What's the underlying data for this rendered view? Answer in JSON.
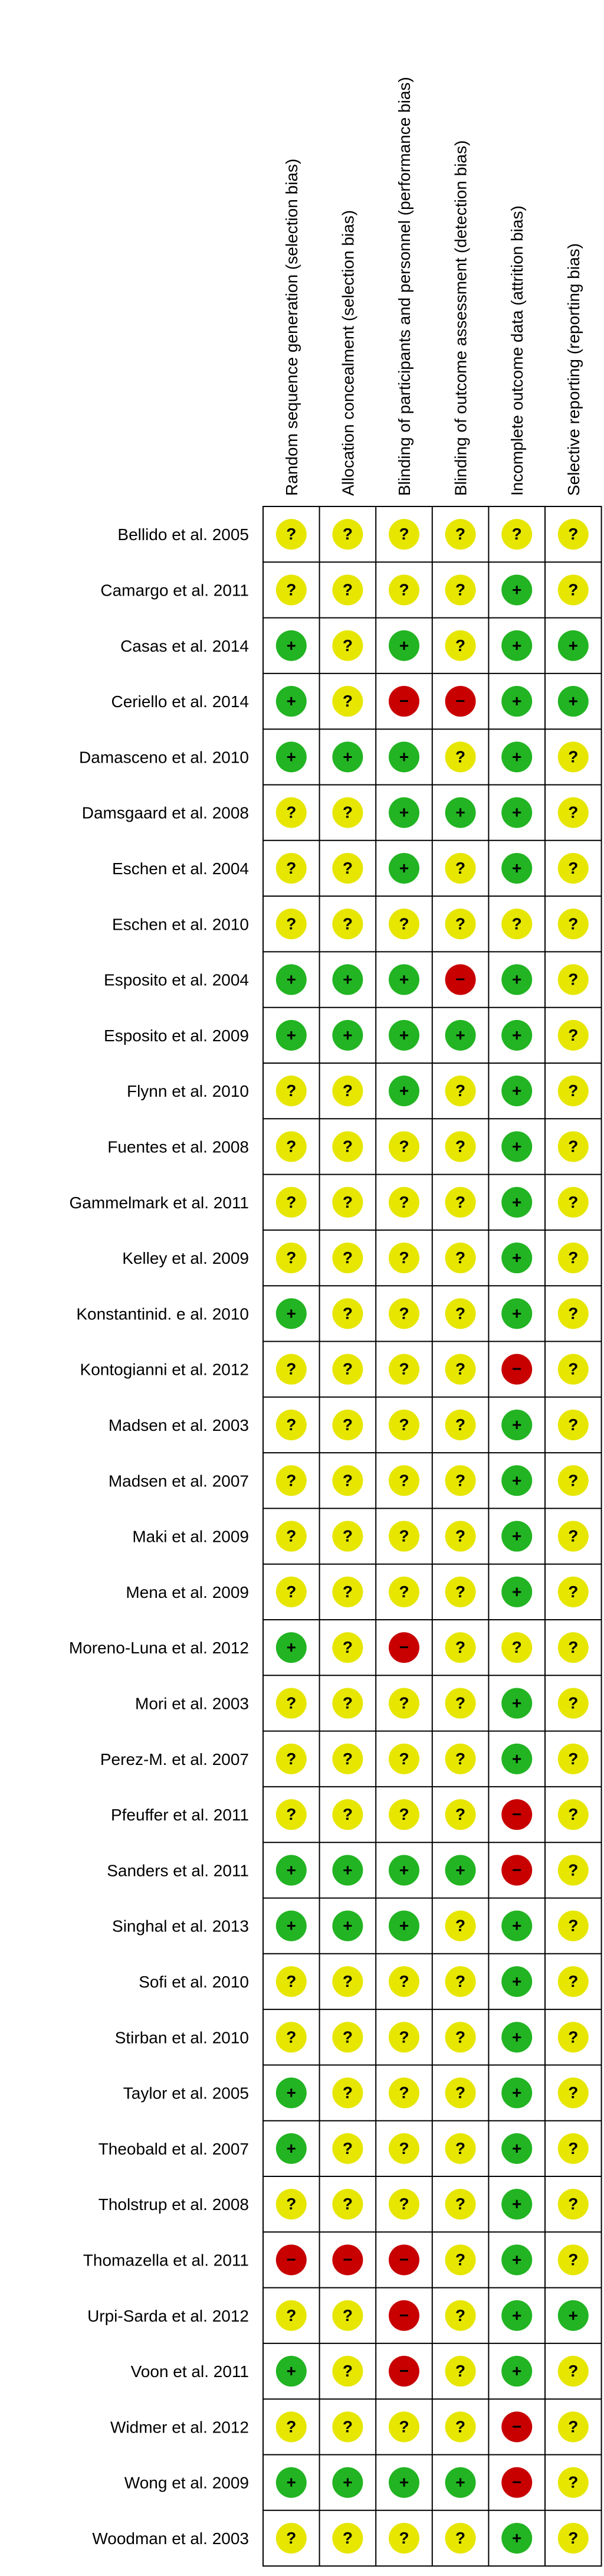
{
  "domains": [
    "Random sequence generation (selection bias)",
    "Allocation concealment (selection bias)",
    "Blinding of participants and personnel (performance bias)",
    "Blinding of outcome assessment (detection bias)",
    "Incomplete outcome data (attrition bias)",
    "Selective reporting (reporting bias)"
  ],
  "judgement_symbols": {
    "low": "+",
    "unclear": "?",
    "high": "−"
  },
  "judgement_colors": {
    "low": "#22b422",
    "unclear": "#e6e600",
    "high": "#c80000"
  },
  "studies": [
    {
      "name": "Bellido et al. 2005",
      "ratings": [
        "unclear",
        "unclear",
        "unclear",
        "unclear",
        "unclear",
        "unclear"
      ]
    },
    {
      "name": "Camargo et al. 2011",
      "ratings": [
        "unclear",
        "unclear",
        "unclear",
        "unclear",
        "low",
        "unclear"
      ]
    },
    {
      "name": "Casas et al. 2014",
      "ratings": [
        "low",
        "unclear",
        "low",
        "unclear",
        "low",
        "low"
      ]
    },
    {
      "name": "Ceriello et al. 2014",
      "ratings": [
        "low",
        "unclear",
        "high",
        "high",
        "low",
        "low"
      ]
    },
    {
      "name": "Damasceno et al. 2010",
      "ratings": [
        "low",
        "low",
        "low",
        "unclear",
        "low",
        "unclear"
      ]
    },
    {
      "name": "Damsgaard et al. 2008",
      "ratings": [
        "unclear",
        "unclear",
        "low",
        "low",
        "low",
        "unclear"
      ]
    },
    {
      "name": "Eschen et al. 2004",
      "ratings": [
        "unclear",
        "unclear",
        "low",
        "unclear",
        "low",
        "unclear"
      ]
    },
    {
      "name": "Eschen et al. 2010",
      "ratings": [
        "unclear",
        "unclear",
        "unclear",
        "unclear",
        "unclear",
        "unclear"
      ]
    },
    {
      "name": "Esposito et al. 2004",
      "ratings": [
        "low",
        "low",
        "low",
        "high",
        "low",
        "unclear"
      ]
    },
    {
      "name": "Esposito et al. 2009",
      "ratings": [
        "low",
        "low",
        "low",
        "low",
        "low",
        "unclear"
      ]
    },
    {
      "name": "Flynn et al. 2010",
      "ratings": [
        "unclear",
        "unclear",
        "low",
        "unclear",
        "low",
        "unclear"
      ]
    },
    {
      "name": "Fuentes et al. 2008",
      "ratings": [
        "unclear",
        "unclear",
        "unclear",
        "unclear",
        "low",
        "unclear"
      ]
    },
    {
      "name": "Gammelmark et al. 2011",
      "ratings": [
        "unclear",
        "unclear",
        "unclear",
        "unclear",
        "low",
        "unclear"
      ]
    },
    {
      "name": "Kelley et al. 2009",
      "ratings": [
        "unclear",
        "unclear",
        "unclear",
        "unclear",
        "low",
        "unclear"
      ]
    },
    {
      "name": "Konstantinid. e al. 2010",
      "ratings": [
        "low",
        "unclear",
        "unclear",
        "unclear",
        "low",
        "unclear"
      ]
    },
    {
      "name": "Kontogianni et al. 2012",
      "ratings": [
        "unclear",
        "unclear",
        "unclear",
        "unclear",
        "high",
        "unclear"
      ]
    },
    {
      "name": "Madsen et al. 2003",
      "ratings": [
        "unclear",
        "unclear",
        "unclear",
        "unclear",
        "low",
        "unclear"
      ]
    },
    {
      "name": "Madsen et al. 2007",
      "ratings": [
        "unclear",
        "unclear",
        "unclear",
        "unclear",
        "low",
        "unclear"
      ]
    },
    {
      "name": "Maki et al. 2009",
      "ratings": [
        "unclear",
        "unclear",
        "unclear",
        "unclear",
        "low",
        "unclear"
      ]
    },
    {
      "name": "Mena et al. 2009",
      "ratings": [
        "unclear",
        "unclear",
        "unclear",
        "unclear",
        "low",
        "unclear"
      ]
    },
    {
      "name": "Moreno-Luna et al. 2012",
      "ratings": [
        "low",
        "unclear",
        "high",
        "unclear",
        "unclear",
        "unclear"
      ]
    },
    {
      "name": "Mori et al. 2003",
      "ratings": [
        "unclear",
        "unclear",
        "unclear",
        "unclear",
        "low",
        "unclear"
      ]
    },
    {
      "name": "Perez-M. et al. 2007",
      "ratings": [
        "unclear",
        "unclear",
        "unclear",
        "unclear",
        "low",
        "unclear"
      ]
    },
    {
      "name": "Pfeuffer et al. 2011",
      "ratings": [
        "unclear",
        "unclear",
        "unclear",
        "unclear",
        "high",
        "unclear"
      ]
    },
    {
      "name": "Sanders et al. 2011",
      "ratings": [
        "low",
        "low",
        "low",
        "low",
        "high",
        "unclear"
      ]
    },
    {
      "name": "Singhal et al. 2013",
      "ratings": [
        "low",
        "low",
        "low",
        "unclear",
        "low",
        "unclear"
      ]
    },
    {
      "name": "Sofi et al. 2010",
      "ratings": [
        "unclear",
        "unclear",
        "unclear",
        "unclear",
        "low",
        "unclear"
      ]
    },
    {
      "name": "Stirban et al. 2010",
      "ratings": [
        "unclear",
        "unclear",
        "unclear",
        "unclear",
        "low",
        "unclear"
      ]
    },
    {
      "name": "Taylor et al. 2005",
      "ratings": [
        "low",
        "unclear",
        "unclear",
        "unclear",
        "low",
        "unclear"
      ]
    },
    {
      "name": "Theobald et al. 2007",
      "ratings": [
        "low",
        "unclear",
        "unclear",
        "unclear",
        "low",
        "unclear"
      ]
    },
    {
      "name": "Tholstrup et al. 2008",
      "ratings": [
        "unclear",
        "unclear",
        "unclear",
        "unclear",
        "low",
        "unclear"
      ]
    },
    {
      "name": "Thomazella et al. 2011",
      "ratings": [
        "high",
        "high",
        "high",
        "unclear",
        "low",
        "unclear"
      ]
    },
    {
      "name": "Urpi-Sarda et al. 2012",
      "ratings": [
        "unclear",
        "unclear",
        "high",
        "unclear",
        "low",
        "low"
      ]
    },
    {
      "name": "Voon et al. 2011",
      "ratings": [
        "low",
        "unclear",
        "high",
        "unclear",
        "low",
        "unclear"
      ]
    },
    {
      "name": "Widmer et al. 2012",
      "ratings": [
        "unclear",
        "unclear",
        "unclear",
        "unclear",
        "high",
        "unclear"
      ]
    },
    {
      "name": "Wong et al. 2009",
      "ratings": [
        "low",
        "low",
        "low",
        "low",
        "high",
        "unclear"
      ]
    },
    {
      "name": "Woodman et al. 2003",
      "ratings": [
        "unclear",
        "unclear",
        "unclear",
        "unclear",
        "low",
        "unclear"
      ]
    }
  ]
}
